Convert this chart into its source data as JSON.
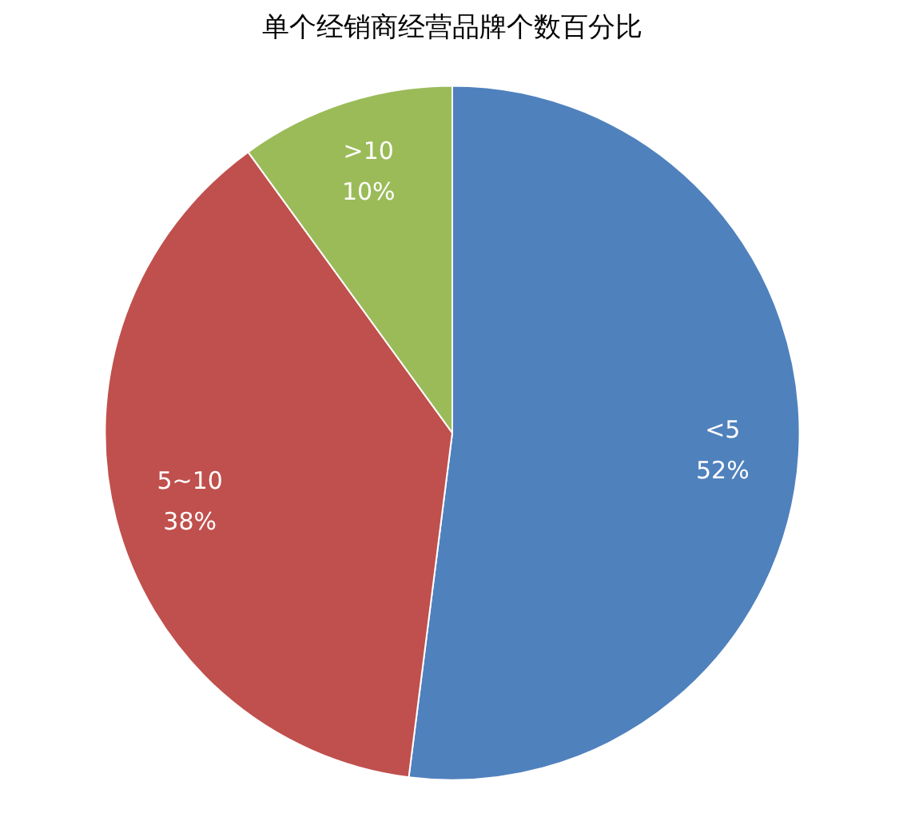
{
  "chart_data": {
    "type": "pie",
    "title": "单个经销商经营品牌个数百分比",
    "categories": [
      "<5",
      "5~10",
      ">10"
    ],
    "values": [
      52,
      38,
      10
    ],
    "colors": [
      "#4f81bd",
      "#c0504d",
      "#9bbb59"
    ],
    "value_labels": [
      "52%",
      "38%",
      "10%"
    ]
  }
}
